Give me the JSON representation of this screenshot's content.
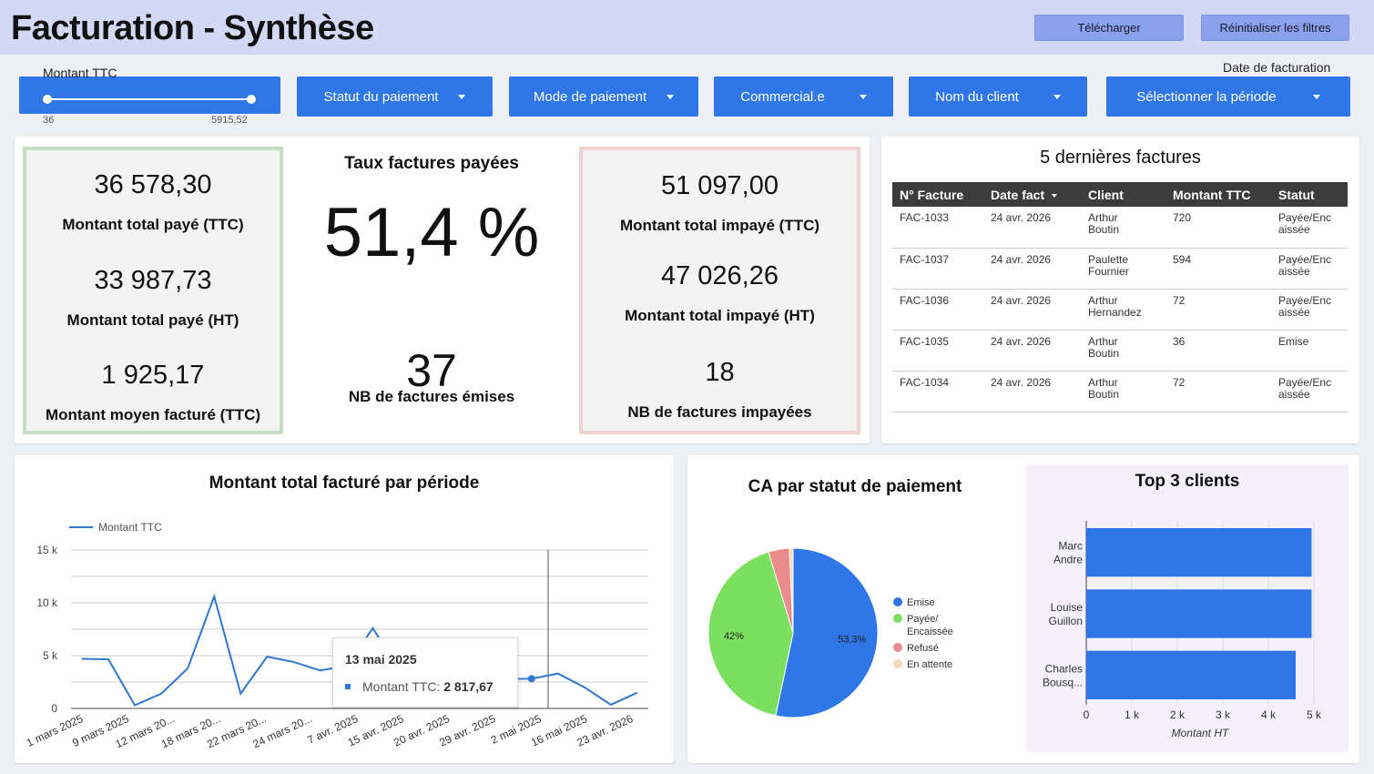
{
  "header": {
    "title": "Facturation - Synthèse",
    "download_label": "Télécharger",
    "reset_label": "Réinitialiser les filtres"
  },
  "filters": {
    "slider": {
      "label": "Montant TTC",
      "min_label": "36",
      "max_label": "5915,52",
      "min": 36,
      "max": 5915.52
    },
    "payment_status": "Statut du paiement",
    "payment_mode": "Mode de paiement",
    "sales_rep": "Commercial.e",
    "client_name": "Nom du client",
    "date_label": "Date de facturation",
    "period": "Sélectionner la période"
  },
  "kpis": {
    "paid": {
      "total_ttc": "36 578,30",
      "total_ttc_label": "Montant total payé (TTC)",
      "total_ht": "33 987,73",
      "total_ht_label": "Montant total payé (HT)",
      "avg_ttc": "1 925,17",
      "avg_ttc_label": "Montant moyen facturé (TTC)"
    },
    "rate": {
      "title": "Taux factures payées",
      "value": "51,4 %",
      "count": "37",
      "count_label": "NB de factures émises"
    },
    "unpaid": {
      "total_ttc": "51 097,00",
      "total_ttc_label": "Montant total impayé (TTC)",
      "total_ht": "47 026,26",
      "total_ht_label": "Montant total impayé (HT)",
      "count": "18",
      "count_label": "NB de factures impayées"
    }
  },
  "invoices": {
    "title": "5 dernières factures",
    "columns": [
      "N° Facture",
      "Date fact",
      "Client",
      "Montant TTC",
      "Statut"
    ],
    "sort_column": "Date fact",
    "rows": [
      {
        "id": "FAC-1033",
        "date": "24 avr. 2026",
        "client_first": "Arthur",
        "client_last": "Boutin",
        "amount": "720",
        "status_1": "Payée/Enc",
        "status_2": "aissée"
      },
      {
        "id": "FAC-1037",
        "date": "24 avr. 2026",
        "client_first": "Paulette",
        "client_last": "Fournier",
        "amount": "594",
        "status_1": "Payée/Enc",
        "status_2": "aissée"
      },
      {
        "id": "FAC-1036",
        "date": "24 avr. 2026",
        "client_first": "Arthur",
        "client_last": "Hernandez",
        "amount": "72",
        "status_1": "Payée/Enc",
        "status_2": "aissée"
      },
      {
        "id": "FAC-1035",
        "date": "24 avr. 2026",
        "client_first": "Arthur",
        "client_last": "Boutin",
        "amount": "36",
        "status_1": "Emise",
        "status_2": ""
      },
      {
        "id": "FAC-1034",
        "date": "24 avr. 2026",
        "client_first": "Arthur",
        "client_last": "Boutin",
        "amount": "72",
        "status_1": "Payée/Enc",
        "status_2": "aissée"
      }
    ]
  },
  "chart_data": [
    {
      "type": "line",
      "title": "Montant total facturé par période",
      "x_tick_labels": [
        "1 mars 2025",
        "9 mars 2025",
        "12 mars 20...",
        "18 mars 20...",
        "22 mars 20...",
        "24 mars 20...",
        "7 avr. 2025",
        "15 avr. 2025",
        "20 avr. 2025",
        "29 avr. 2025",
        "2 mai 2025",
        "16 mai 2025",
        "23 avr. 2026"
      ],
      "y_ticks": [
        0,
        5000,
        10000,
        15000
      ],
      "y_tick_labels": [
        "0",
        "5 k",
        "10 k",
        "15 k"
      ],
      "ylim": [
        0,
        15000
      ],
      "legend": "top-left",
      "grid": true,
      "series": [
        {
          "name": "Montant TTC",
          "color": "#2f77cf",
          "values": [
            4700,
            4650,
            300,
            1400,
            3800,
            10600,
            1400,
            4900,
            4400,
            3600,
            4000,
            7600,
            3500,
            2300,
            1200,
            3100,
            2800,
            2817.67,
            3300,
            2000,
            350,
            1500
          ]
        }
      ],
      "tooltip": {
        "title": "13 mai 2025",
        "series": "Montant TTC",
        "value": "2 817,67",
        "index": 17
      }
    },
    {
      "type": "pie",
      "title": "CA par statut de paiement",
      "slices": [
        {
          "label": "Emise",
          "value": 53.3,
          "color": "#2f76e8",
          "value_label": "53,3%"
        },
        {
          "label_1": "Payée/",
          "label_2": "Encaissée",
          "value": 42.0,
          "color": "#7ae05e",
          "value_label": "42%"
        },
        {
          "label": "Refusé",
          "value": 4.0,
          "color": "#ec8b8b"
        },
        {
          "label": "En attente",
          "value": 0.7,
          "color": "#f5dcb4"
        }
      ],
      "legend": "right"
    },
    {
      "type": "bar",
      "orientation": "horizontal",
      "title": "Top 3 clients",
      "categories": [
        [
          "Marc",
          "Andre"
        ],
        [
          "Louise",
          "Guillon"
        ],
        [
          "Charles",
          "Bousq..."
        ]
      ],
      "values": [
        4950,
        4950,
        4600
      ],
      "xlim": [
        0,
        5000
      ],
      "x_ticks": [
        0,
        1000,
        2000,
        3000,
        4000,
        5000
      ],
      "x_tick_labels": [
        "0",
        "1 k",
        "2 k",
        "3 k",
        "4 k",
        "5 k"
      ],
      "xlabel": "Montant HT",
      "color": "#2f76e8"
    }
  ]
}
